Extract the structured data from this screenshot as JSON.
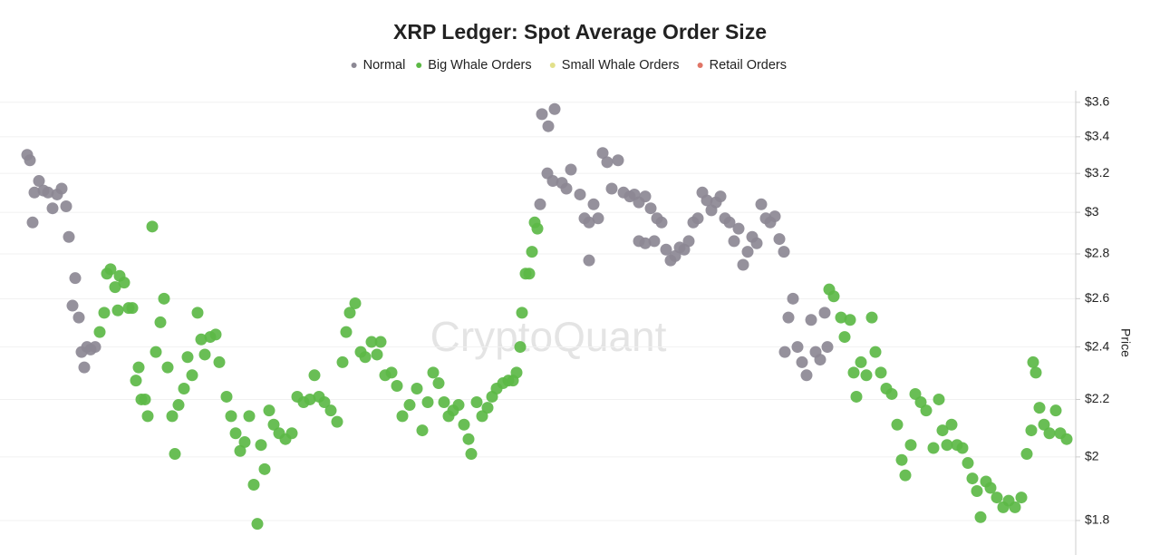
{
  "chart_data": {
    "type": "scatter",
    "title": "XRP Ledger: Spot Average Order Size",
    "y_label": "Price",
    "watermark": "CryptoQuant",
    "log_y": true,
    "grid": true,
    "legend": "top",
    "xlim": [
      0,
      1170
    ],
    "ylim": [
      1.7,
      3.67
    ],
    "yticks": [
      {
        "value": 1.8,
        "label": "$1.8"
      },
      {
        "value": 2,
        "label": "$2"
      },
      {
        "value": 2.2,
        "label": "$2.2"
      },
      {
        "value": 2.4,
        "label": "$2.4"
      },
      {
        "value": 2.6,
        "label": "$2.6"
      },
      {
        "value": 2.8,
        "label": "$2.8"
      },
      {
        "value": 3,
        "label": "$3"
      },
      {
        "value": 3.2,
        "label": "$3.2"
      },
      {
        "value": 3.4,
        "label": "$3.4"
      },
      {
        "value": 3.6,
        "label": "$3.6"
      }
    ],
    "series": [
      {
        "name": "Normal",
        "color": "#8c8894",
        "x": [
          10,
          13,
          16,
          18,
          23,
          28,
          33,
          38,
          43,
          48,
          53,
          56,
          63,
          60,
          67,
          70,
          73,
          76,
          80,
          85,
          578,
          585,
          592,
          576,
          584,
          590,
          600,
          605,
          610,
          620,
          625,
          630,
          635,
          640,
          630,
          645,
          650,
          655,
          662,
          668,
          675,
          680,
          685,
          692,
          698,
          705,
          710,
          685,
          692,
          702,
          715,
          720,
          725,
          730,
          735,
          740,
          745,
          750,
          755,
          760,
          765,
          770,
          775,
          780,
          785,
          790,
          795,
          800,
          805,
          810,
          815,
          820,
          825,
          830,
          835,
          840,
          845,
          846,
          850,
          855,
          860,
          865,
          870,
          875,
          880,
          885,
          890,
          893
        ],
        "values": [
          3.3,
          3.27,
          2.95,
          3.1,
          3.16,
          3.11,
          3.1,
          3.02,
          3.09,
          3.12,
          3.03,
          2.88,
          2.69,
          2.57,
          2.52,
          2.38,
          2.32,
          2.4,
          2.39,
          2.4,
          3.53,
          3.46,
          3.56,
          3.04,
          3.2,
          3.16,
          3.15,
          3.12,
          3.22,
          3.09,
          2.97,
          2.95,
          3.04,
          2.97,
          2.77,
          3.31,
          3.26,
          3.12,
          3.27,
          3.1,
          3.08,
          3.09,
          3.05,
          3.08,
          3.02,
          2.97,
          2.95,
          2.86,
          2.85,
          2.86,
          2.82,
          2.77,
          2.79,
          2.83,
          2.82,
          2.86,
          2.95,
          2.97,
          3.1,
          3.06,
          3.01,
          3.05,
          3.08,
          2.97,
          2.95,
          2.86,
          2.92,
          2.75,
          2.81,
          2.88,
          2.85,
          3.04,
          2.97,
          2.95,
          2.98,
          2.87,
          2.81,
          2.38,
          2.52,
          2.6,
          2.4,
          2.34,
          2.29,
          2.51,
          2.38,
          2.35,
          2.54,
          2.4
        ]
      },
      {
        "name": "Big Whale Orders",
        "color": "#5cb946",
        "x": [
          95,
          98,
          102,
          107,
          112,
          117,
          122,
          126,
          110,
          90,
          130,
          133,
          136,
          140,
          143,
          148,
          152,
          157,
          161,
          165,
          170,
          173,
          177,
          183,
          187,
          192,
          198,
          202,
          206,
          212,
          218,
          222,
          230,
          235,
          240,
          245,
          250,
          255,
          260,
          264,
          268,
          272,
          277,
          282,
          288,
          295,
          302,
          308,
          315,
          322,
          327,
          332,
          338,
          345,
          352,
          358,
          362,
          366,
          372,
          378,
          383,
          390,
          396,
          400,
          405,
          412,
          418,
          424,
          432,
          440,
          446,
          452,
          458,
          464,
          470,
          475,
          480,
          486,
          492,
          497,
          500,
          506,
          512,
          518,
          523,
          528,
          535,
          541,
          546,
          550,
          554,
          556,
          560,
          564,
          567,
          570,
          573,
          895,
          900,
          908,
          912,
          918,
          922,
          925,
          930,
          936,
          942,
          946,
          952,
          958,
          964,
          970,
          975,
          979,
          985,
          990,
          996,
          1002,
          1010,
          1016,
          1020,
          1025,
          1030,
          1036,
          1042,
          1048,
          1053,
          1058,
          1062,
          1068,
          1073,
          1080,
          1087,
          1093,
          1100,
          1107,
          1113,
          1118,
          1120,
          1123,
          1127,
          1132,
          1138,
          1145,
          1150,
          1157
        ],
        "values": [
          2.54,
          2.71,
          2.73,
          2.65,
          2.7,
          2.67,
          2.56,
          2.56,
          2.55,
          2.46,
          2.27,
          2.32,
          2.2,
          2.2,
          2.14,
          2.93,
          2.38,
          2.5,
          2.6,
          2.32,
          2.14,
          2.01,
          2.18,
          2.24,
          2.36,
          2.29,
          2.54,
          2.43,
          2.37,
          2.44,
          2.45,
          2.34,
          2.21,
          2.14,
          2.08,
          2.02,
          2.05,
          2.14,
          1.91,
          1.79,
          2.04,
          1.96,
          2.16,
          2.11,
          2.08,
          2.06,
          2.08,
          2.21,
          2.19,
          2.2,
          2.29,
          2.21,
          2.19,
          2.16,
          2.12,
          2.34,
          2.46,
          2.54,
          2.58,
          2.38,
          2.36,
          2.42,
          2.37,
          2.42,
          2.29,
          2.3,
          2.25,
          2.14,
          2.18,
          2.24,
          2.09,
          2.19,
          2.3,
          2.26,
          2.19,
          2.14,
          2.16,
          2.18,
          2.11,
          2.06,
          2.01,
          2.19,
          2.14,
          2.17,
          2.21,
          2.24,
          2.26,
          2.27,
          2.27,
          2.3,
          2.4,
          2.54,
          2.71,
          2.71,
          2.81,
          2.95,
          2.92,
          2.64,
          2.61,
          2.52,
          2.44,
          2.51,
          2.3,
          2.21,
          2.34,
          2.29,
          2.52,
          2.38,
          2.3,
          2.24,
          2.22,
          2.11,
          1.99,
          1.94,
          2.04,
          2.22,
          2.19,
          2.16,
          2.03,
          2.2,
          2.09,
          2.04,
          2.11,
          2.04,
          2.03,
          1.98,
          1.93,
          1.89,
          1.81,
          1.92,
          1.9,
          1.87,
          1.84,
          1.86,
          1.84,
          1.87,
          2.01,
          2.09,
          2.34,
          2.3,
          2.17,
          2.11,
          2.08,
          2.16,
          2.08,
          2.06
        ]
      },
      {
        "name": "Small Whale Orders",
        "color": "#e2e08a",
        "x": [],
        "values": []
      },
      {
        "name": "Retail Orders",
        "color": "#e07566",
        "x": [],
        "values": []
      }
    ]
  }
}
